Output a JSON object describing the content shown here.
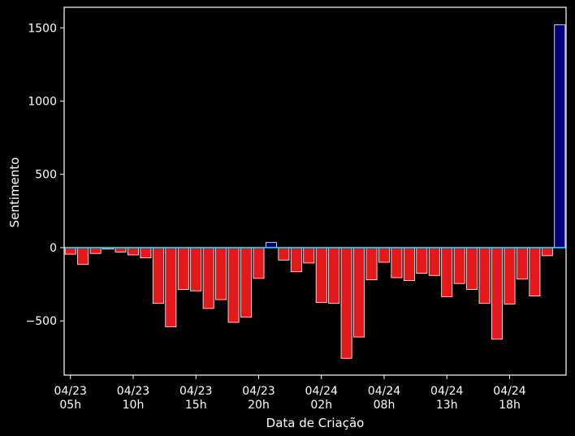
{
  "chart_data": {
    "type": "bar",
    "xlabel": "Data de Criação",
    "ylabel": "Sentimento",
    "ylim": [
      -870,
      1640
    ],
    "yticks": [
      -500,
      0,
      500,
      1000,
      1500
    ],
    "ytick_labels": [
      "−500",
      "0",
      "500",
      "1000",
      "1500"
    ],
    "xtick_labels": [
      {
        "index": 0,
        "line1": "04/23",
        "line2": "05h"
      },
      {
        "index": 5,
        "line1": "04/23",
        "line2": "10h"
      },
      {
        "index": 10,
        "line1": "04/23",
        "line2": "15h"
      },
      {
        "index": 15,
        "line1": "04/23",
        "line2": "20h"
      },
      {
        "index": 20,
        "line1": "04/24",
        "line2": "02h"
      },
      {
        "index": 25,
        "line1": "04/24",
        "line2": "08h"
      },
      {
        "index": 30,
        "line1": "04/24",
        "line2": "13h"
      },
      {
        "index": 35,
        "line1": "04/24",
        "line2": "18h"
      }
    ],
    "values": [
      -45,
      -115,
      -40,
      -10,
      -30,
      -50,
      -70,
      -380,
      -540,
      -285,
      -295,
      -415,
      -355,
      -510,
      -475,
      -210,
      35,
      -85,
      -165,
      -105,
      -375,
      -380,
      -755,
      -610,
      -220,
      -100,
      -205,
      -225,
      -175,
      -190,
      -335,
      -245,
      -285,
      -380,
      -625,
      -385,
      -215,
      -330,
      -55,
      1520
    ],
    "grid": false,
    "colors": {
      "negative": "#e31a1c",
      "positive": "#000080",
      "bar_edge": "#ffffff",
      "zero_line": "#00e5ee",
      "background": "#000000",
      "axes": "#ffffff"
    }
  }
}
